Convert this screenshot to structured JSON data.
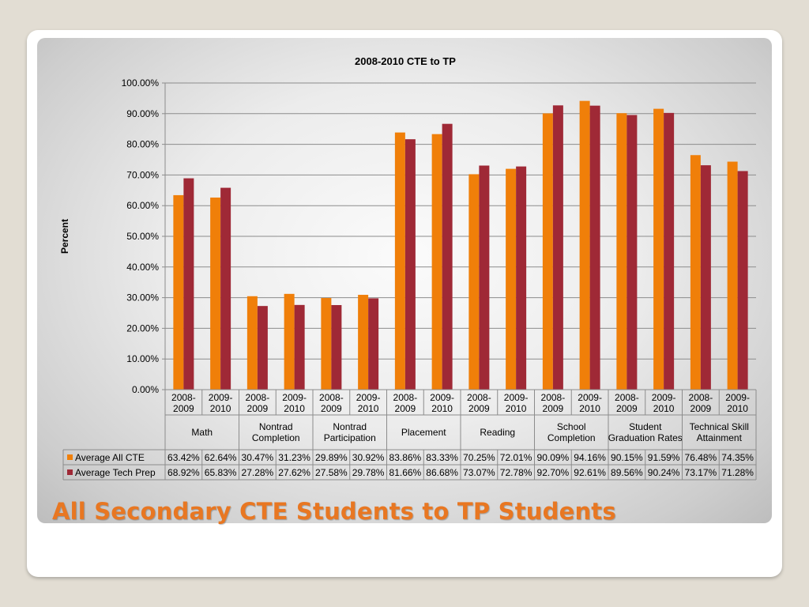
{
  "slide": {
    "title": "All Secondary CTE Students to TP Students"
  },
  "chart_data": {
    "type": "bar",
    "title": "2008-2010 CTE to TP",
    "ylabel": "Percent",
    "ylim": [
      0,
      100
    ],
    "y_ticks": [
      "0.00%",
      "10.00%",
      "20.00%",
      "30.00%",
      "40.00%",
      "50.00%",
      "60.00%",
      "70.00%",
      "80.00%",
      "90.00%",
      "100.00%"
    ],
    "grid": true,
    "legend_placement": "bottom data table",
    "groups": [
      {
        "label": "Math",
        "years": [
          "2008-2009",
          "2009-2010"
        ]
      },
      {
        "label": "Nontrad Completion",
        "years": [
          "2008-2009",
          "2009-2010"
        ]
      },
      {
        "label": "Nontrad Participation",
        "years": [
          "2008-2009",
          "2009-2010"
        ]
      },
      {
        "label": "Placement",
        "years": [
          "2008-2009",
          "2009-2010"
        ]
      },
      {
        "label": "Reading",
        "years": [
          "2008-2009",
          "2009-2010"
        ]
      },
      {
        "label": "School Completion",
        "years": [
          "2008-2009",
          "2009-2010"
        ]
      },
      {
        "label": "Student Graduation Rates",
        "years": [
          "2008-2009",
          "2009-2010"
        ]
      },
      {
        "label": "Technical Skill Attainment",
        "years": [
          "2008-2009",
          "2009-2010"
        ]
      }
    ],
    "series": [
      {
        "name": "Average All CTE",
        "color": "#f07f09",
        "values": [
          63.42,
          62.64,
          30.47,
          31.23,
          29.89,
          30.92,
          83.86,
          83.33,
          70.25,
          72.01,
          90.09,
          94.16,
          90.15,
          91.59,
          76.48,
          74.35
        ],
        "labels": [
          "63.42%",
          "62.64%",
          "30.47%",
          "31.23%",
          "29.89%",
          "30.92%",
          "83.86%",
          "83.33%",
          "70.25%",
          "72.01%",
          "90.09%",
          "94.16%",
          "90.15%",
          "91.59%",
          "76.48%",
          "74.35%"
        ]
      },
      {
        "name": "Average Tech Prep",
        "color": "#9f2936",
        "values": [
          68.92,
          65.83,
          27.28,
          27.62,
          27.58,
          29.78,
          81.66,
          86.68,
          73.07,
          72.78,
          92.7,
          92.61,
          89.56,
          90.24,
          73.17,
          71.28
        ],
        "labels": [
          "68.92%",
          "65.83%",
          "27.28%",
          "27.62%",
          "27.58%",
          "29.78%",
          "81.66%",
          "86.68%",
          "73.07%",
          "72.78%",
          "92.70%",
          "92.61%",
          "89.56%",
          "90.24%",
          "73.17%",
          "71.28%"
        ]
      }
    ]
  }
}
